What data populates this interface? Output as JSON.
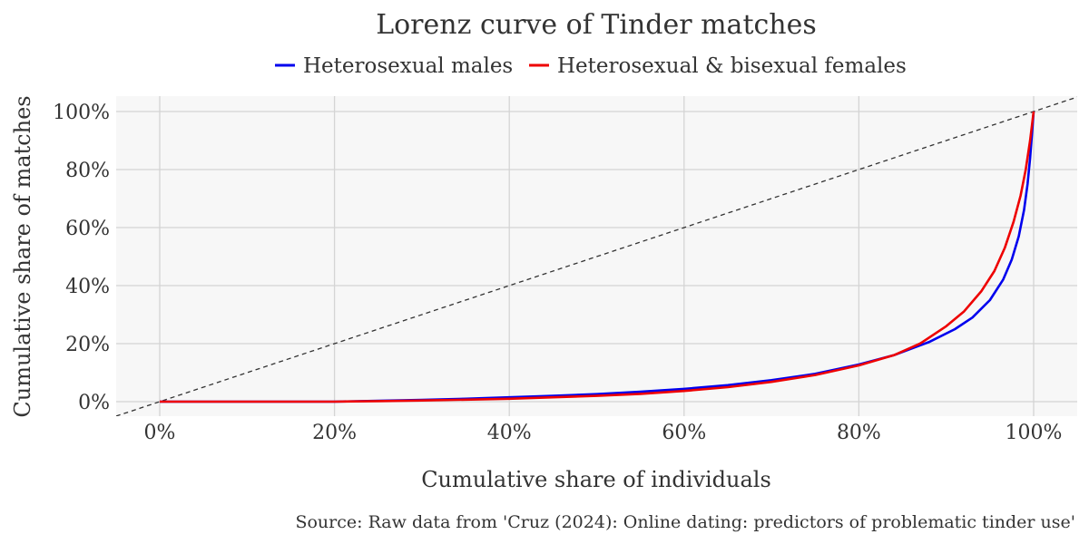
{
  "chart_data": {
    "type": "line",
    "title": "Lorenz curve of Tinder matches",
    "xlabel": "Cumulative share of individuals",
    "ylabel": "Cumulative share of matches",
    "source": "Source: Raw data from 'Cruz (2024): Online dating: predictors of problematic tinder use'",
    "xlim": [
      -5,
      105
    ],
    "ylim": [
      -5,
      105
    ],
    "x_ticks": [
      0,
      20,
      40,
      60,
      80,
      100
    ],
    "x_tick_labels": [
      "0%",
      "20%",
      "40%",
      "60%",
      "80%",
      "100%"
    ],
    "y_ticks": [
      0,
      20,
      40,
      60,
      80,
      100
    ],
    "y_tick_labels": [
      "0%",
      "20%",
      "40%",
      "60%",
      "80%",
      "100%"
    ],
    "grid": true,
    "legend_position": "top-center",
    "reference_line": {
      "type": "equality",
      "style": "dashed",
      "color": "#333333"
    },
    "series": [
      {
        "name": "Heterosexual males",
        "color": "#0000ee",
        "points": [
          [
            0,
            0
          ],
          [
            10,
            0
          ],
          [
            20,
            0
          ],
          [
            25,
            0.3
          ],
          [
            30,
            0.6
          ],
          [
            35,
            1
          ],
          [
            40,
            1.5
          ],
          [
            45,
            2
          ],
          [
            50,
            2.6
          ],
          [
            55,
            3.4
          ],
          [
            60,
            4.4
          ],
          [
            65,
            5.7
          ],
          [
            70,
            7.4
          ],
          [
            75,
            9.6
          ],
          [
            80,
            12.8
          ],
          [
            84,
            16
          ],
          [
            88,
            20.5
          ],
          [
            91,
            25
          ],
          [
            93,
            29
          ],
          [
            95,
            35
          ],
          [
            96.5,
            42
          ],
          [
            97.5,
            49
          ],
          [
            98.3,
            57
          ],
          [
            98.9,
            66
          ],
          [
            99.3,
            75
          ],
          [
            99.6,
            84
          ],
          [
            99.8,
            92
          ],
          [
            100,
            100
          ]
        ]
      },
      {
        "name": "Heterosexual & bisexual females",
        "color": "#ee0000",
        "points": [
          [
            0,
            0
          ],
          [
            10,
            0
          ],
          [
            20,
            0
          ],
          [
            25,
            0.2
          ],
          [
            30,
            0.4
          ],
          [
            35,
            0.7
          ],
          [
            40,
            1
          ],
          [
            45,
            1.5
          ],
          [
            50,
            2
          ],
          [
            55,
            2.7
          ],
          [
            60,
            3.7
          ],
          [
            65,
            5
          ],
          [
            70,
            6.8
          ],
          [
            75,
            9.2
          ],
          [
            80,
            12.5
          ],
          [
            84,
            16
          ],
          [
            87,
            20
          ],
          [
            90,
            26
          ],
          [
            92,
            31
          ],
          [
            94,
            38
          ],
          [
            95.5,
            45
          ],
          [
            96.7,
            53
          ],
          [
            97.7,
            62
          ],
          [
            98.5,
            71
          ],
          [
            99.1,
            80
          ],
          [
            99.6,
            90
          ],
          [
            100,
            100
          ]
        ]
      }
    ]
  }
}
